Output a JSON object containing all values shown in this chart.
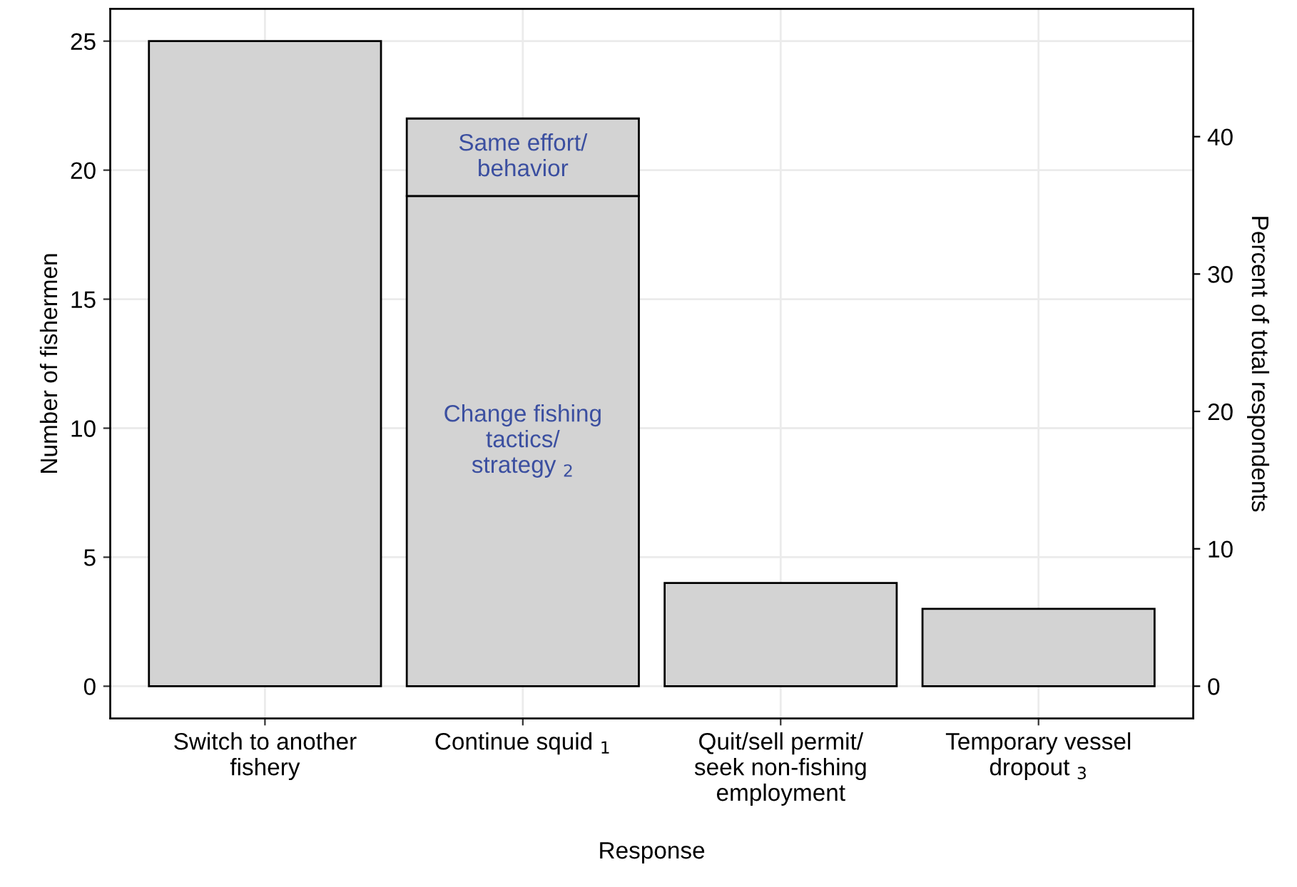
{
  "chart_data": {
    "type": "bar",
    "stacked": true,
    "xlabel": "Response",
    "ylabel": "Number of fishermen",
    "y2label": "Percent of total respondents",
    "categories": [
      "Switch to another\nfishery",
      "Continue squid $_{1}$",
      "Quit/sell permit/\nseek non-fishing\nemployment",
      "Temporary vessel\ndropout $_{3}$"
    ],
    "series": [
      {
        "color": "#d3d3d3",
        "values": [
          25,
          19,
          4,
          3
        ]
      },
      {
        "color": "#d3d3d3",
        "values": [
          null,
          3,
          null,
          null
        ]
      }
    ],
    "ylim": [
      -1.25,
      26.25
    ],
    "yticks": [
      0,
      5,
      10,
      15,
      20,
      25
    ],
    "y2lim": [
      -2.35,
      49.3
    ],
    "y2ticks": [
      0,
      10,
      20,
      30,
      40
    ],
    "annotations": [
      "Same effort/\nbehavior",
      "Change fishing\ntactics/\nstrategy $_{2}$"
    ],
    "grid": true
  }
}
